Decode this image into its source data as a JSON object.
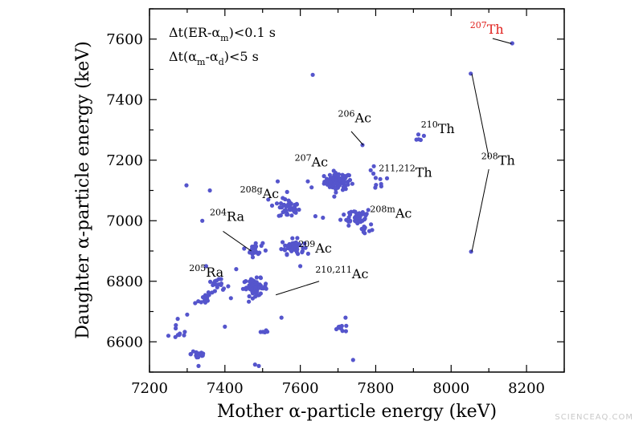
{
  "watermark": "SCIENCEAQ.COM",
  "chart_data": {
    "type": "scatter",
    "xlabel": "Mother α-particle energy (keV)",
    "ylabel": "Daughter α-particle energy (keV)",
    "xlim": [
      7200,
      8300
    ],
    "ylim": [
      6500,
      7700
    ],
    "xticks": [
      7200,
      7400,
      7600,
      7800,
      8000,
      8200
    ],
    "yticks": [
      6600,
      6800,
      7000,
      7200,
      7400,
      7600
    ],
    "grid": false,
    "marker_color": "#5555cc",
    "conditions": [
      {
        "main": "Δt(ER-α",
        "sub": "m",
        "rest": ")<0.1 s"
      },
      {
        "main": "Δt(α",
        "sub": "m",
        "mid": "-α",
        "sub2": "d",
        "rest": ")<5 s"
      }
    ],
    "annotations": [
      {
        "sup": "207",
        "text": "Th",
        "color": "#e0201c",
        "x": 8050,
        "y": 7618,
        "leader": [
          [
            8110,
            7602
          ],
          [
            8160,
            7585
          ]
        ]
      },
      {
        "sup": "206",
        "text": "Ac",
        "x": 7700,
        "y": 7325,
        "leader": [
          [
            7735,
            7295
          ],
          [
            7767,
            7250
          ]
        ]
      },
      {
        "sup": "210",
        "text": "Th",
        "x": 7920,
        "y": 7290,
        "leader": null
      },
      {
        "sup": "207",
        "text": "Ac",
        "x": 7585,
        "y": 7180,
        "leader": null
      },
      {
        "sup": "211,212",
        "text": "Th",
        "x": 7808,
        "y": 7145,
        "leader": null
      },
      {
        "sup": "208",
        "text": "Th",
        "x": 8080,
        "y": 7185,
        "leader": [
          [
            8100,
            7210
          ],
          [
            8055,
            7485
          ]
        ],
        "leader2": [
          [
            8100,
            7170
          ],
          [
            8055,
            6898
          ]
        ]
      },
      {
        "sup": "208g",
        "text": "Ac",
        "x": 7440,
        "y": 7075,
        "leader": null
      },
      {
        "sup": "208m",
        "text": "Ac",
        "x": 7785,
        "y": 7010,
        "leader": null
      },
      {
        "sup": "204",
        "text": "Ra",
        "x": 7360,
        "y": 7000,
        "leader": [
          [
            7395,
            6965
          ],
          [
            7470,
            6900
          ]
        ]
      },
      {
        "sup": "209",
        "text": "Ac",
        "x": 7595,
        "y": 6895,
        "leader": null
      },
      {
        "sup": "205",
        "text": "Ra",
        "x": 7305,
        "y": 6815,
        "leader": null
      },
      {
        "sup": "210,211",
        "text": "Ac",
        "x": 7640,
        "y": 6810,
        "leader": [
          [
            7650,
            6800
          ],
          [
            7535,
            6755
          ]
        ]
      }
    ],
    "clusters": [
      {
        "cx": 7700,
        "cy": 7130,
        "sx": 18,
        "sy": 14,
        "n": 80
      },
      {
        "cx": 7570,
        "cy": 7040,
        "sx": 14,
        "sy": 16,
        "n": 45
      },
      {
        "cx": 7750,
        "cy": 7015,
        "sx": 20,
        "sy": 14,
        "n": 40
      },
      {
        "cx": 7770,
        "cy": 6970,
        "sx": 12,
        "sy": 12,
        "n": 12
      },
      {
        "cx": 7580,
        "cy": 6915,
        "sx": 15,
        "sy": 12,
        "n": 45
      },
      {
        "cx": 7480,
        "cy": 6905,
        "sx": 10,
        "sy": 12,
        "n": 25
      },
      {
        "cx": 7480,
        "cy": 6780,
        "sx": 16,
        "sy": 14,
        "n": 65
      },
      {
        "cx": 7380,
        "cy": 6780,
        "sx": 16,
        "sy": 14,
        "n": 22
      },
      {
        "cx": 7340,
        "cy": 6735,
        "sx": 12,
        "sy": 12,
        "n": 10
      },
      {
        "cx": 7330,
        "cy": 6560,
        "sx": 10,
        "sy": 10,
        "n": 18
      },
      {
        "cx": 7280,
        "cy": 6630,
        "sx": 12,
        "sy": 14,
        "n": 8
      },
      {
        "cx": 7710,
        "cy": 6645,
        "sx": 12,
        "sy": 6,
        "n": 10
      },
      {
        "cx": 7915,
        "cy": 7268,
        "sx": 8,
        "sy": 8,
        "n": 5
      },
      {
        "cx": 7800,
        "cy": 7130,
        "sx": 14,
        "sy": 25,
        "n": 8
      },
      {
        "cx": 7500,
        "cy": 6625,
        "sx": 8,
        "sy": 10,
        "n": 5
      }
    ],
    "points": [
      [
        8162,
        7586
      ],
      [
        8052,
        7486
      ],
      [
        8053,
        6898
      ],
      [
        7633,
        7482
      ],
      [
        7765,
        7250
      ],
      [
        7298,
        7117
      ],
      [
        7360,
        7100
      ],
      [
        7340,
        7000
      ],
      [
        7540,
        7130
      ],
      [
        7620,
        7130
      ],
      [
        7630,
        7110
      ],
      [
        7515,
        7070
      ],
      [
        7565,
        7095
      ],
      [
        7525,
        7050
      ],
      [
        7640,
        7015
      ],
      [
        7660,
        7010
      ],
      [
        7690,
        7080
      ],
      [
        7795,
        7180
      ],
      [
        7830,
        7140
      ],
      [
        7480,
        6525
      ],
      [
        7490,
        6520
      ],
      [
        7740,
        6540
      ],
      [
        7330,
        6520
      ],
      [
        7720,
        6680
      ],
      [
        7550,
        6680
      ],
      [
        7600,
        6850
      ],
      [
        7400,
        6650
      ],
      [
        7300,
        6690
      ],
      [
        7250,
        6620
      ],
      [
        7350,
        6850
      ],
      [
        7430,
        6840
      ],
      [
        7270,
        6655
      ]
    ]
  }
}
